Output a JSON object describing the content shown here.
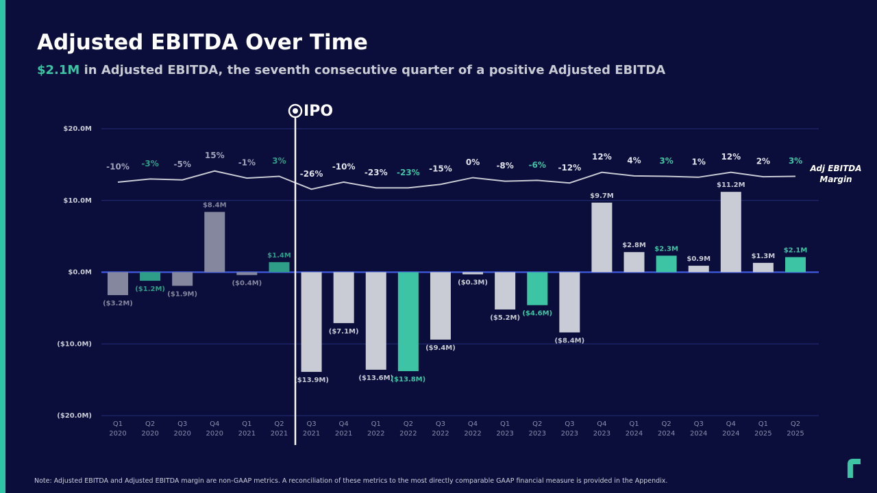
{
  "chart_data": {
    "type": "bar",
    "title": "Adjusted EBITDA Over Time",
    "subtitle_highlight": "$2.1M",
    "subtitle": "in Adjusted EBITDA, the seventh consecutive quarter of a positive Adjusted EBITDA",
    "annotation": "IPO",
    "note": "Note: Adjusted EBITDA and Adjusted EBITDA margin are  non-GAAP metrics. A reconciliation of these metrics to the most directly comparable GAAP financial measure is provided in the Appendix.",
    "categories": [
      "Q1 2020",
      "Q2 2020",
      "Q3 2020",
      "Q4 2020",
      "Q1 2021",
      "Q2 2021",
      "Q3 2021",
      "Q4 2021",
      "Q1 2022",
      "Q2 2022",
      "Q3 2022",
      "Q4 2022",
      "Q1 2023",
      "Q2 2023",
      "Q3 2023",
      "Q4 2023",
      "Q1 2024",
      "Q2 2024",
      "Q3 2024",
      "Q4 2024",
      "Q1 2025",
      "Q2 2025"
    ],
    "series": [
      {
        "type": "bar",
        "values": [
          -3.2,
          -1.2,
          -1.9,
          8.4,
          -0.4,
          1.4,
          -13.9,
          -7.1,
          -13.6,
          -13.8,
          -9.4,
          -0.3,
          -5.2,
          -4.6,
          -8.4,
          9.7,
          2.8,
          2.3,
          0.9,
          11.2,
          1.3,
          2.1
        ],
        "value_labels": [
          "($3.2M)",
          "($1.2M)",
          "($1.9M)",
          "$8.4M",
          "($0.4M)",
          "$1.4M",
          "($13.9M)",
          "($7.1M)",
          "($13.6M)",
          "($13.8M)",
          "($9.4M)",
          "($0.3M)",
          "($5.2M)",
          "($4.6M)",
          "($8.4M)",
          "$9.7M",
          "$2.8M",
          "$2.3M",
          "$0.9M",
          "$11.2M",
          "$1.3M",
          "$2.1M"
        ],
        "colors": [
          "#85879f",
          "#2e9e89",
          "#85879f",
          "#85879f",
          "#85879f",
          "#2e9e89",
          "#c9ccd4",
          "#c9ccd4",
          "#c9ccd4",
          "#3cc4a5",
          "#c9ccd4",
          "#c9ccd4",
          "#c9ccd4",
          "#3cc4a5",
          "#c9ccd4",
          "#c9ccd4",
          "#c9ccd4",
          "#3cc4a5",
          "#c9ccd4",
          "#c9ccd4",
          "#c9ccd4",
          "#3cc4a5"
        ]
      },
      {
        "type": "line",
        "name": "Adj EBITDA Margin",
        "axis": "y2",
        "color": "#c9ccd4",
        "values": [
          -10,
          -3,
          -5,
          15,
          -1,
          3,
          -26,
          -10,
          -23,
          -23,
          -15,
          0,
          -8,
          -6,
          -12,
          12,
          4,
          3,
          1,
          12,
          2,
          3
        ],
        "value_labels": [
          "-10%",
          "-3%",
          "-5%",
          "15%",
          "-1%",
          "3%",
          "-26%",
          "-10%",
          "-23%",
          "-23%",
          "-15%",
          "0%",
          "-8%",
          "-6%",
          "-12%",
          "12%",
          "4%",
          "3%",
          "1%",
          "12%",
          "2%",
          "3%"
        ]
      }
    ],
    "ylim": [
      -20,
      20
    ],
    "yticks": [
      {
        "value": 20,
        "label": "$20.0M"
      },
      {
        "value": 10,
        "label": "$10.0M"
      },
      {
        "value": 0,
        "label": "$0.0M"
      },
      {
        "value": -10,
        "label": "($10.0M)"
      },
      {
        "value": -20,
        "label": "($20.0M)"
      }
    ],
    "y2lim": [
      -535,
      110
    ],
    "grid": true
  }
}
